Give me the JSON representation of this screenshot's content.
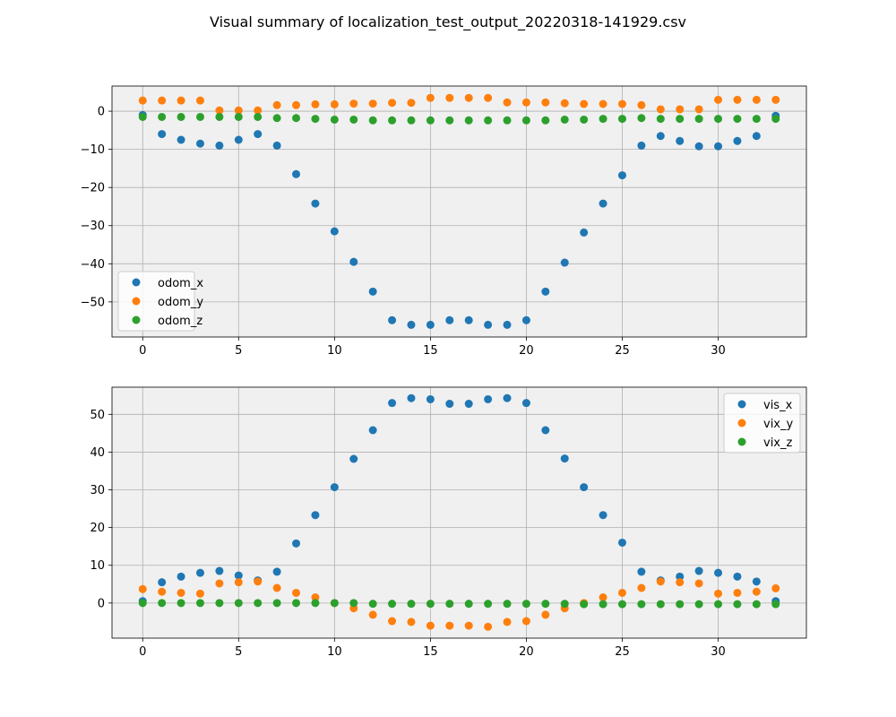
{
  "title": "Visual summary of localization_test_output_20220318-141929.csv",
  "colors": {
    "blue": "#1f77b4",
    "orange": "#ff7f0e",
    "green": "#2ca02c",
    "axes_bg": "#f0f0f0",
    "grid": "#b0b0b0"
  },
  "chart_data": [
    {
      "type": "scatter",
      "legend_position": "lower-left",
      "grid": true,
      "xlim": [
        -1.6,
        34.6
      ],
      "ylim": [
        -59.2,
        6.6
      ],
      "xticks": [
        0,
        5,
        10,
        15,
        20,
        25,
        30
      ],
      "yticks": [
        0,
        -10,
        -20,
        -30,
        -40,
        -50
      ],
      "x": [
        0,
        1,
        2,
        3,
        4,
        5,
        6,
        7,
        8,
        9,
        10,
        11,
        12,
        13,
        14,
        15,
        16,
        17,
        18,
        19,
        20,
        21,
        22,
        23,
        24,
        25,
        26,
        27,
        28,
        29,
        30,
        31,
        32,
        33
      ],
      "series": [
        {
          "name": "odom_x",
          "color": "#1f77b4",
          "values": [
            -1,
            -6,
            -7.5,
            -8.5,
            -9,
            -7.5,
            -6,
            -9,
            -16.5,
            -24.2,
            -31.5,
            -39.5,
            -47.3,
            -54.8,
            -56,
            -56,
            -54.8,
            -54.8,
            -56,
            -56,
            -54.8,
            -47.3,
            -39.7,
            -31.8,
            -24.2,
            -16.8,
            -9,
            -6.5,
            -7.8,
            -9.2,
            -9.2,
            -7.8,
            -6.5,
            -1.2
          ]
        },
        {
          "name": "odom_y",
          "color": "#ff7f0e",
          "values": [
            2.8,
            2.8,
            2.8,
            2.8,
            0.2,
            0.2,
            0.2,
            1.6,
            1.6,
            1.8,
            1.8,
            2,
            2,
            2.2,
            2.2,
            3.5,
            3.5,
            3.5,
            3.5,
            2.3,
            2.3,
            2.3,
            2.1,
            1.9,
            1.9,
            1.9,
            1.6,
            0.5,
            0.5,
            0.5,
            3,
            3,
            3,
            3
          ]
        },
        {
          "name": "odom_z",
          "color": "#2ca02c",
          "values": [
            -1.5,
            -1.5,
            -1.5,
            -1.5,
            -1.5,
            -1.5,
            -1.5,
            -1.8,
            -1.8,
            -2,
            -2.2,
            -2.2,
            -2.4,
            -2.4,
            -2.4,
            -2.4,
            -2.4,
            -2.4,
            -2.4,
            -2.4,
            -2.4,
            -2.4,
            -2.2,
            -2.2,
            -2,
            -2,
            -1.8,
            -2,
            -2,
            -2,
            -2,
            -2,
            -2,
            -2
          ]
        }
      ]
    },
    {
      "type": "scatter",
      "legend_position": "upper-right",
      "grid": true,
      "xlim": [
        -1.6,
        34.6
      ],
      "ylim": [
        -9.3,
        57.2
      ],
      "xticks": [
        0,
        5,
        10,
        15,
        20,
        25,
        30
      ],
      "yticks": [
        0,
        10,
        20,
        30,
        40,
        50
      ],
      "x": [
        0,
        1,
        2,
        3,
        4,
        5,
        6,
        7,
        8,
        9,
        10,
        11,
        12,
        13,
        14,
        15,
        16,
        17,
        18,
        19,
        20,
        21,
        22,
        23,
        24,
        25,
        26,
        27,
        28,
        29,
        30,
        31,
        32,
        33
      ],
      "series": [
        {
          "name": "vis_x",
          "color": "#1f77b4",
          "values": [
            0.5,
            5.5,
            7,
            8,
            8.5,
            7.3,
            6,
            8.3,
            15.8,
            23.3,
            30.7,
            38.2,
            45.8,
            53,
            54.3,
            54,
            52.8,
            52.8,
            54,
            54.3,
            53,
            45.8,
            38.3,
            30.7,
            23.3,
            16,
            8.3,
            6,
            7,
            8.5,
            8,
            7,
            5.7,
            0.5
          ]
        },
        {
          "name": "vix_y",
          "color": "#ff7f0e",
          "values": [
            3.7,
            3,
            2.7,
            2.5,
            5.2,
            5.5,
            5.7,
            4,
            2.7,
            1.5,
            0,
            -1.4,
            -3.1,
            -4.8,
            -5,
            -6,
            -6,
            -6,
            -6.3,
            -5,
            -4.8,
            -3.1,
            -1.4,
            0,
            1.5,
            2.7,
            4,
            5.7,
            5.5,
            5.2,
            2.5,
            2.7,
            3,
            3.9
          ]
        },
        {
          "name": "vix_z",
          "color": "#2ca02c",
          "values": [
            0,
            0,
            0,
            0,
            0,
            0,
            0,
            0,
            0,
            0,
            0,
            0,
            -0.2,
            -0.2,
            -0.2,
            -0.2,
            -0.2,
            -0.2,
            -0.2,
            -0.2,
            -0.2,
            -0.2,
            -0.2,
            -0.3,
            -0.3,
            -0.3,
            -0.3,
            -0.3,
            -0.3,
            -0.3,
            -0.3,
            -0.3,
            -0.3,
            -0.3
          ]
        }
      ]
    }
  ]
}
